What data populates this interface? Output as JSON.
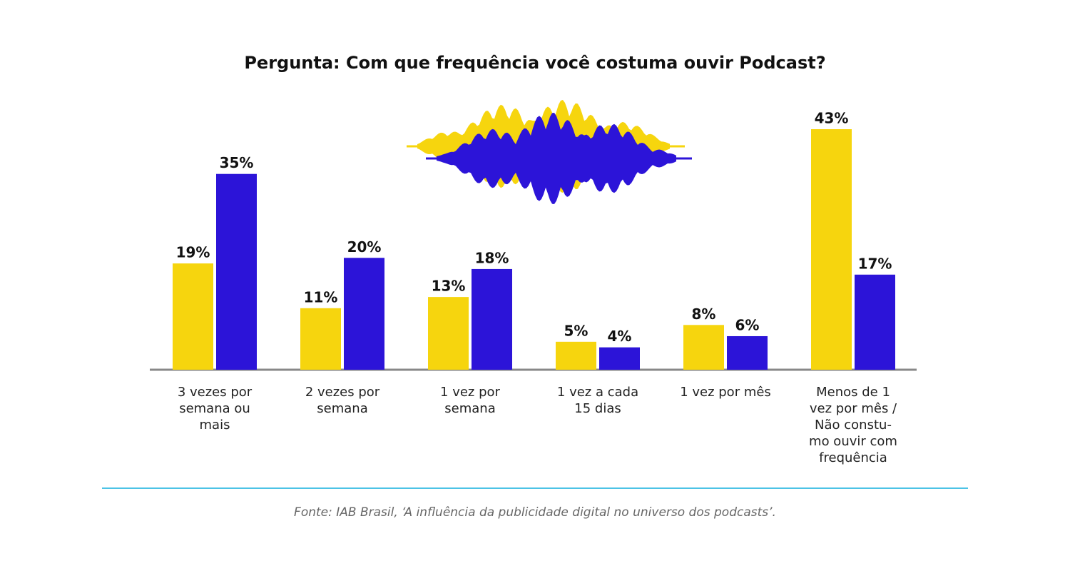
{
  "chart_data": {
    "type": "bar",
    "title": "Pergunta: Com que frequência você costuma ouvir Podcast?",
    "categories": [
      "3 vezes por\nsemana ou\nmais",
      "2 vezes por\nsemana",
      "1 vez por\nsemana",
      "1 vez a cada\n15 dias",
      "1 vez por mês",
      "Menos de 1\nvez por mês /\nNão constu-\nmo ouvir com\nfrequência"
    ],
    "series": [
      {
        "color": "#f6d50e",
        "values": [
          19,
          11,
          13,
          5,
          8,
          43
        ],
        "value_labels": [
          "19%",
          "11%",
          "13%",
          "5%",
          "8%",
          "43%"
        ]
      },
      {
        "color": "#2c14d8",
        "values": [
          35,
          20,
          18,
          4,
          6,
          17
        ],
        "value_labels": [
          "35%",
          "20%",
          "18%",
          "4%",
          "6%",
          "17%"
        ]
      }
    ],
    "source": "Fonte: IAB Brasil, ‘A influência da publicidade digital no universo dos podcasts’."
  }
}
